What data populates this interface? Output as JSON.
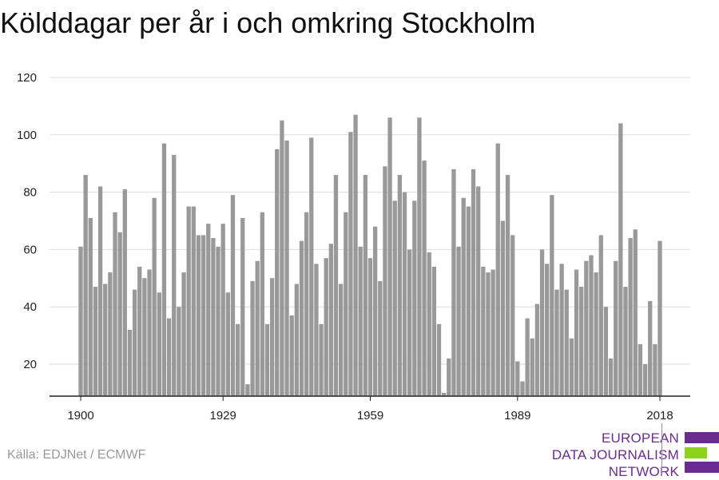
{
  "title": "Kölddagar per år i och omkring Stockholm",
  "source": "Källa: EDJNet / ECMWF",
  "logo": {
    "line1": "EUROPEAN",
    "line2": "DATA JOURNALISM",
    "line3": "NETWORK"
  },
  "colors": {
    "bar": "#999999",
    "grid": "#dddddd",
    "axis": "#222222",
    "brand_purple": "#6a2d8f",
    "brand_green": "#8fd21e"
  },
  "chart_data": {
    "type": "bar",
    "title": "Kölddagar per år i och omkring Stockholm",
    "xlabel": "",
    "ylabel": "",
    "x_ticks": [
      "1900",
      "1929",
      "1959",
      "1989",
      "2018"
    ],
    "y_ticks": [
      "20",
      "40",
      "60",
      "80",
      "100",
      "120"
    ],
    "ylim": [
      8,
      122
    ],
    "grid": true,
    "start_year": 1900,
    "end_year": 2018,
    "values": [
      61,
      86,
      71,
      47,
      82,
      48,
      52,
      73,
      66,
      81,
      32,
      46,
      54,
      50,
      53,
      78,
      45,
      97,
      36,
      93,
      40,
      52,
      75,
      75,
      65,
      65,
      69,
      64,
      61,
      69,
      45,
      79,
      34,
      71,
      13,
      49,
      56,
      73,
      34,
      50,
      95,
      105,
      98,
      37,
      48,
      63,
      73,
      99,
      55,
      34,
      57,
      62,
      86,
      48,
      73,
      101,
      107,
      61,
      86,
      57,
      68,
      49,
      89,
      106,
      77,
      86,
      80,
      60,
      77,
      106,
      91,
      59,
      54,
      34,
      10,
      22,
      88,
      61,
      78,
      75,
      88,
      82,
      54,
      52,
      53,
      97,
      70,
      86,
      65,
      21,
      14,
      36,
      29,
      41,
      60,
      55,
      79,
      46,
      55,
      46,
      29,
      53,
      47,
      56,
      58,
      52,
      65,
      40,
      22,
      56,
      104,
      47,
      64,
      67,
      27,
      20,
      42,
      27,
      63
    ]
  }
}
